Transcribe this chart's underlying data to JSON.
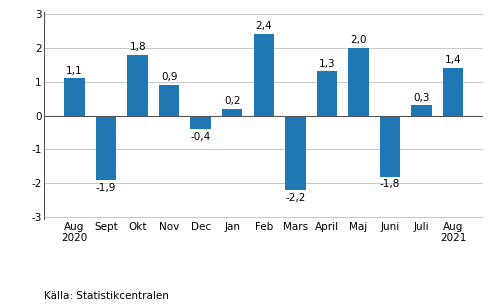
{
  "categories": [
    "Aug\n2020",
    "Sept",
    "Okt",
    "Nov",
    "Dec",
    "Jan",
    "Feb",
    "Mars",
    "April",
    "Maj",
    "Juni",
    "Juli",
    "Aug\n2021"
  ],
  "values": [
    1.1,
    -1.9,
    1.8,
    0.9,
    -0.4,
    0.2,
    2.4,
    -2.2,
    1.3,
    2.0,
    -1.8,
    0.3,
    1.4
  ],
  "bar_color": "#1f77b4",
  "ylim": [
    -3,
    3
  ],
  "yticks": [
    -3,
    -2,
    -1,
    0,
    1,
    2,
    3
  ],
  "source_text": "Källa: Statistikcentralen",
  "tick_fontsize": 7.5,
  "source_fontsize": 7.5,
  "bar_label_fontsize": 7.5,
  "background_color": "#ffffff",
  "grid_color": "#c8c8c8"
}
